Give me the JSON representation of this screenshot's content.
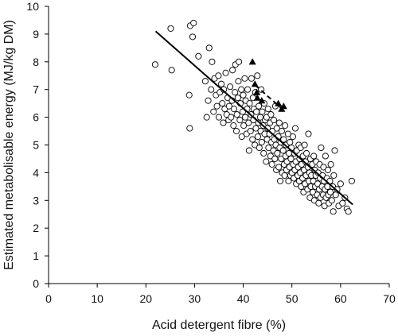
{
  "chart_data": {
    "type": "scatter",
    "title": "",
    "xlabel": "Acid detergent fibre (%)",
    "ylabel": "Estimated metabolisable energy (MJ/kg DM)",
    "xlim": [
      0,
      70
    ],
    "ylim": [
      0,
      10
    ],
    "xticks": [
      0,
      10,
      20,
      30,
      40,
      50,
      60,
      70
    ],
    "yticks": [
      0,
      1,
      2,
      3,
      4,
      5,
      6,
      7,
      8,
      9,
      10
    ],
    "grid": false,
    "legend": "none",
    "series": [
      {
        "marker": "open-circle",
        "points": [
          [
            21.9,
            7.9
          ],
          [
            25.1,
            9.2
          ],
          [
            25.3,
            7.7
          ],
          [
            28.9,
            6.8
          ],
          [
            29.0,
            5.6
          ],
          [
            29.1,
            9.3
          ],
          [
            29.6,
            8.9
          ],
          [
            29.8,
            9.4
          ],
          [
            30.8,
            8.2
          ],
          [
            32.2,
            7.3
          ],
          [
            32.5,
            6.0
          ],
          [
            32.8,
            6.6
          ],
          [
            33.0,
            8.5
          ],
          [
            33.4,
            7.0
          ],
          [
            33.6,
            8.0
          ],
          [
            33.9,
            6.2
          ],
          [
            34.1,
            7.4
          ],
          [
            34.4,
            6.8
          ],
          [
            34.6,
            6.4
          ],
          [
            34.9,
            7.5
          ],
          [
            35.0,
            6.0
          ],
          [
            35.2,
            6.9
          ],
          [
            35.5,
            7.2
          ],
          [
            35.7,
            6.5
          ],
          [
            35.9,
            5.8
          ],
          [
            36.0,
            7.0
          ],
          [
            36.2,
            6.3
          ],
          [
            36.4,
            7.6
          ],
          [
            36.6,
            6.1
          ],
          [
            36.8,
            6.7
          ],
          [
            37.0,
            5.9
          ],
          [
            37.1,
            6.4
          ],
          [
            37.3,
            7.1
          ],
          [
            37.5,
            6.0
          ],
          [
            37.7,
            6.6
          ],
          [
            37.8,
            7.7
          ],
          [
            38.0,
            5.7
          ],
          [
            38.1,
            6.3
          ],
          [
            38.3,
            6.9
          ],
          [
            38.4,
            7.9
          ],
          [
            38.6,
            5.5
          ],
          [
            38.7,
            6.1
          ],
          [
            38.9,
            6.7
          ],
          [
            39.0,
            7.3
          ],
          [
            39.1,
            8.0
          ],
          [
            39.3,
            5.9
          ],
          [
            39.4,
            6.5
          ],
          [
            39.6,
            7.0
          ],
          [
            39.7,
            5.3
          ],
          [
            39.9,
            6.2
          ],
          [
            40.0,
            6.8
          ],
          [
            40.1,
            5.7
          ],
          [
            40.3,
            7.4
          ],
          [
            40.4,
            6.0
          ],
          [
            40.5,
            6.6
          ],
          [
            40.7,
            5.4
          ],
          [
            40.8,
            6.3
          ],
          [
            40.9,
            7.0
          ],
          [
            41.1,
            5.8
          ],
          [
            41.2,
            4.8
          ],
          [
            41.3,
            6.5
          ],
          [
            41.5,
            5.5
          ],
          [
            41.6,
            6.1
          ],
          [
            41.7,
            7.4
          ],
          [
            41.9,
            5.2
          ],
          [
            42.0,
            6.7
          ],
          [
            42.1,
            5.9
          ],
          [
            42.2,
            6.3
          ],
          [
            42.4,
            5.0
          ],
          [
            42.5,
            6.9
          ],
          [
            42.6,
            5.6
          ],
          [
            42.7,
            6.2
          ],
          [
            42.9,
            7.5
          ],
          [
            43.0,
            5.3
          ],
          [
            43.1,
            5.8
          ],
          [
            43.2,
            6.4
          ],
          [
            43.3,
            4.9
          ],
          [
            43.5,
            6.0
          ],
          [
            43.6,
            5.5
          ],
          [
            43.7,
            7.0
          ],
          [
            43.8,
            5.1
          ],
          [
            43.9,
            6.2
          ],
          [
            44.1,
            5.7
          ],
          [
            44.2,
            4.7
          ],
          [
            44.3,
            6.5
          ],
          [
            44.4,
            5.4
          ],
          [
            44.5,
            5.9
          ],
          [
            44.7,
            4.4
          ],
          [
            44.8,
            6.0
          ],
          [
            44.9,
            5.2
          ],
          [
            45.0,
            5.6
          ],
          [
            45.1,
            6.3
          ],
          [
            45.2,
            4.9
          ],
          [
            45.4,
            5.4
          ],
          [
            45.5,
            5.8
          ],
          [
            45.6,
            4.6
          ],
          [
            45.7,
            6.1
          ],
          [
            45.8,
            5.1
          ],
          [
            45.9,
            4.3
          ],
          [
            46.0,
            5.5
          ],
          [
            46.2,
            4.8
          ],
          [
            46.3,
            5.9
          ],
          [
            46.4,
            5.2
          ],
          [
            46.5,
            4.5
          ],
          [
            46.6,
            6.4
          ],
          [
            46.7,
            5.0
          ],
          [
            46.8,
            4.1
          ],
          [
            46.9,
            5.6
          ],
          [
            47.0,
            4.7
          ],
          [
            47.2,
            5.3
          ],
          [
            47.3,
            4.2
          ],
          [
            47.4,
            5.8
          ],
          [
            47.5,
            4.9
          ],
          [
            47.6,
            3.7
          ],
          [
            47.7,
            5.1
          ],
          [
            47.8,
            4.5
          ],
          [
            47.9,
            5.5
          ],
          [
            48.0,
            4.0
          ],
          [
            48.2,
            4.8
          ],
          [
            48.3,
            5.2
          ],
          [
            48.4,
            4.3
          ],
          [
            48.5,
            3.9
          ],
          [
            48.6,
            5.7
          ],
          [
            48.7,
            4.6
          ],
          [
            48.8,
            5.0
          ],
          [
            48.9,
            4.1
          ],
          [
            49.0,
            4.4
          ],
          [
            49.2,
            5.4
          ],
          [
            49.3,
            3.7
          ],
          [
            49.4,
            4.7
          ],
          [
            49.5,
            4.2
          ],
          [
            49.6,
            5.1
          ],
          [
            49.7,
            3.9
          ],
          [
            49.8,
            4.5
          ],
          [
            49.9,
            4.9
          ],
          [
            50.0,
            4.0
          ],
          [
            50.2,
            5.3
          ],
          [
            50.3,
            4.3
          ],
          [
            50.4,
            3.8
          ],
          [
            50.5,
            4.7
          ],
          [
            50.6,
            4.1
          ],
          [
            50.7,
            5.6
          ],
          [
            50.8,
            4.4
          ],
          [
            50.9,
            3.6
          ],
          [
            51.0,
            4.8
          ],
          [
            51.2,
            3.9
          ],
          [
            51.3,
            4.2
          ],
          [
            51.4,
            5.0
          ],
          [
            51.5,
            3.7
          ],
          [
            51.6,
            4.5
          ],
          [
            51.7,
            4.0
          ],
          [
            51.8,
            4.9
          ],
          [
            51.9,
            3.5
          ],
          [
            52.0,
            4.3
          ],
          [
            52.2,
            3.8
          ],
          [
            52.3,
            4.6
          ],
          [
            52.4,
            3.3
          ],
          [
            52.5,
            4.1
          ],
          [
            52.6,
            5.0
          ],
          [
            52.7,
            3.6
          ],
          [
            52.8,
            4.4
          ],
          [
            52.9,
            3.9
          ],
          [
            53.0,
            4.7
          ],
          [
            53.2,
            3.4
          ],
          [
            53.3,
            4.2
          ],
          [
            53.4,
            5.4
          ],
          [
            53.5,
            3.7
          ],
          [
            53.6,
            4.0
          ],
          [
            53.7,
            3.1
          ],
          [
            53.8,
            4.5
          ],
          [
            53.9,
            3.5
          ],
          [
            54.0,
            3.9
          ],
          [
            54.2,
            4.3
          ],
          [
            54.3,
            3.3
          ],
          [
            54.4,
            3.7
          ],
          [
            54.5,
            4.6
          ],
          [
            54.6,
            3.0
          ],
          [
            54.7,
            4.1
          ],
          [
            54.8,
            3.5
          ],
          [
            54.9,
            3.9
          ],
          [
            55.0,
            4.4
          ],
          [
            55.2,
            3.2
          ],
          [
            55.3,
            3.6
          ],
          [
            55.4,
            4.0
          ],
          [
            55.5,
            2.9
          ],
          [
            55.6,
            3.4
          ],
          [
            55.7,
            4.3
          ],
          [
            55.8,
            3.8
          ],
          [
            55.9,
            3.1
          ],
          [
            56.0,
            4.9
          ],
          [
            56.2,
            3.5
          ],
          [
            56.3,
            3.9
          ],
          [
            56.4,
            3.2
          ],
          [
            56.5,
            4.2
          ],
          [
            56.6,
            3.7
          ],
          [
            56.7,
            2.8
          ],
          [
            56.8,
            3.4
          ],
          [
            56.9,
            4.6
          ],
          [
            57.0,
            3.1
          ],
          [
            57.2,
            3.8
          ],
          [
            57.3,
            3.5
          ],
          [
            57.4,
            4.1
          ],
          [
            57.5,
            3.2
          ],
          [
            57.6,
            2.9
          ],
          [
            57.8,
            3.7
          ],
          [
            57.9,
            3.3
          ],
          [
            58.0,
            4.3
          ],
          [
            58.2,
            3.0
          ],
          [
            58.4,
            3.5
          ],
          [
            58.5,
            2.6
          ],
          [
            58.6,
            3.9
          ],
          [
            58.8,
            4.8
          ],
          [
            59.0,
            3.2
          ],
          [
            59.3,
            3.4
          ],
          [
            59.6,
            2.8
          ],
          [
            60.0,
            3.6
          ],
          [
            60.4,
            2.9
          ],
          [
            60.9,
            3.1
          ],
          [
            61.3,
            2.7
          ],
          [
            61.6,
            2.6
          ],
          [
            62.3,
            3.7
          ]
        ]
      },
      {
        "marker": "filled-triangle",
        "points": [
          [
            41.9,
            8.0
          ],
          [
            42.4,
            7.2
          ],
          [
            42.8,
            6.9
          ],
          [
            42.9,
            6.7
          ],
          [
            43.8,
            6.6
          ],
          [
            47.2,
            6.5
          ],
          [
            47.9,
            6.3
          ],
          [
            48.3,
            6.4
          ]
        ]
      }
    ],
    "lines": [
      {
        "style": "solid",
        "x": [
          22.0,
          62.5
        ],
        "y": [
          9.1,
          2.85
        ]
      },
      {
        "style": "dashed",
        "x": [
          42.5,
          48.0
        ],
        "y": [
          7.15,
          6.3
        ]
      }
    ]
  }
}
